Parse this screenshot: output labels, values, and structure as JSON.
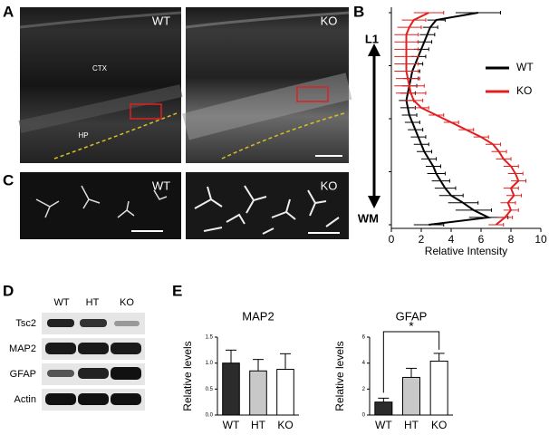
{
  "panel_labels": [
    "A",
    "B",
    "C",
    "D",
    "E"
  ],
  "images": [
    {
      "label": "WT",
      "regions": [
        "CTX",
        "HP"
      ]
    },
    {
      "label": "KO"
    },
    {
      "label": "WT"
    },
    {
      "label": "KO"
    }
  ],
  "blot": {
    "lanes": [
      "WT",
      "HT",
      "KO"
    ],
    "proteins": [
      "Tsc2",
      "MAP2",
      "GFAP",
      "Actin"
    ]
  },
  "chart_data": [
    {
      "type": "line",
      "xlabel": "Relative Intensity",
      "xlim": [
        0,
        10
      ],
      "xticks": [
        0,
        2,
        4,
        6,
        8,
        10
      ],
      "categories": [
        "L1",
        null,
        null,
        null,
        null,
        null,
        null,
        null,
        null,
        null,
        null,
        null,
        null,
        null,
        null,
        null,
        null,
        null,
        null,
        null,
        null,
        null,
        null,
        null,
        null,
        null,
        null,
        null,
        null,
        "WM"
      ],
      "legend": "upper right",
      "series": [
        {
          "name": "WT",
          "color": "#000000",
          "values": [
            5.8,
            3.0,
            2.6,
            2.4,
            2.2,
            2.0,
            1.8,
            1.6,
            1.4,
            1.3,
            1.2,
            1.1,
            1.0,
            1.1,
            1.2,
            1.4,
            1.6,
            1.8,
            2.0,
            2.2,
            2.5,
            2.8,
            3.0,
            3.3,
            3.6,
            4.0,
            4.8,
            5.5,
            6.5,
            2.5
          ],
          "errors": [
            1.5,
            0.6,
            0.5,
            0.5,
            0.5,
            0.5,
            0.5,
            0.5,
            0.5,
            0.5,
            0.5,
            0.5,
            0.5,
            0.5,
            0.5,
            0.5,
            0.5,
            0.5,
            0.5,
            0.5,
            0.5,
            0.5,
            0.6,
            0.6,
            0.7,
            0.8,
            1.0,
            1.2,
            1.3,
            1.0
          ]
        },
        {
          "name": "KO",
          "color": "#e02020",
          "values": [
            2.5,
            1.5,
            1.2,
            1.0,
            1.0,
            1.0,
            1.0,
            1.0,
            1.0,
            1.1,
            1.2,
            1.3,
            1.5,
            2.0,
            3.0,
            4.0,
            5.0,
            6.0,
            6.8,
            7.2,
            7.5,
            8.0,
            8.3,
            8.5,
            8.0,
            8.2,
            7.8,
            8.0,
            7.6,
            7.0
          ],
          "errors": [
            1.0,
            0.8,
            0.8,
            0.8,
            0.8,
            0.8,
            0.8,
            0.8,
            0.8,
            0.8,
            1.0,
            1.0,
            0.6,
            0.5,
            0.5,
            0.5,
            0.5,
            0.5,
            0.5,
            0.5,
            0.5,
            0.5,
            0.5,
            0.5,
            0.5,
            0.5,
            0.5,
            0.5,
            0.5,
            0.5
          ]
        }
      ]
    },
    {
      "type": "bar",
      "title": "MAP2",
      "ylabel": "Relative levels",
      "categories": [
        "WT",
        "HT",
        "KO"
      ],
      "values": [
        1.0,
        0.85,
        0.88
      ],
      "errors": [
        0.25,
        0.22,
        0.3
      ],
      "colors": [
        "#2b2b2b",
        "#c8c8c8",
        "#ffffff"
      ],
      "ylim": [
        0,
        1.5
      ],
      "yticks": [
        {
          "value": 0,
          "label": "0.0"
        },
        0.5,
        {
          "value": 1,
          "label": "1.0"
        },
        1.5
      ]
    },
    {
      "type": "bar",
      "title": "GFAP",
      "ylabel": "Relative levels",
      "categories": [
        "WT",
        "HT",
        "KO"
      ],
      "values": [
        1.0,
        2.9,
        4.15
      ],
      "errors": [
        0.3,
        0.7,
        0.6
      ],
      "colors": [
        "#2b2b2b",
        "#c8c8c8",
        "#ffffff"
      ],
      "ylim": [
        0,
        6
      ],
      "yticks": [
        0,
        2,
        4,
        6
      ],
      "annotation": "*"
    }
  ]
}
